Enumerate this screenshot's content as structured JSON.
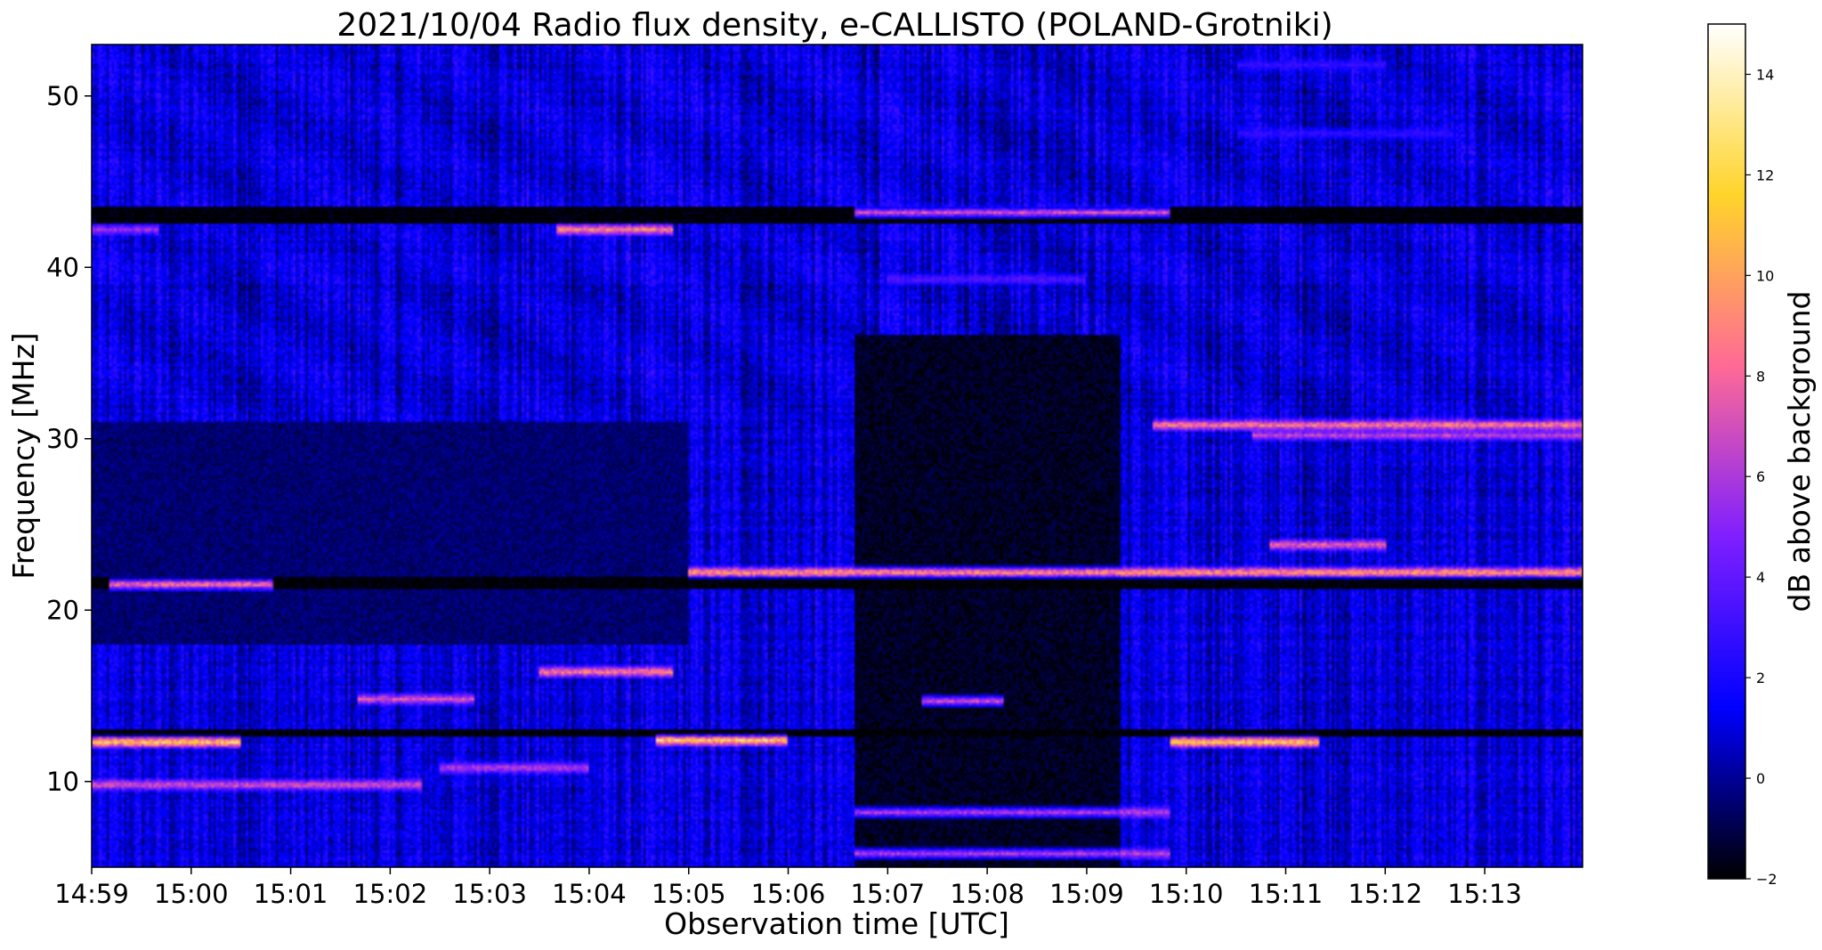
{
  "chart_data": {
    "type": "heatmap",
    "title": "2021/10/04  Radio flux density, e-CALLISTO (POLAND-Grotniki)",
    "xlabel": "Observation time [UTC]",
    "ylabel": "Frequency [MHz]",
    "x_ticks": [
      "14:59",
      "15:00",
      "15:01",
      "15:02",
      "15:03",
      "15:04",
      "15:05",
      "15:06",
      "15:07",
      "15:08",
      "15:09",
      "15:10",
      "15:11",
      "15:12",
      "15:13"
    ],
    "xlim": [
      "14:59:00",
      "15:13:59"
    ],
    "y_ticks": [
      10,
      20,
      30,
      40,
      50
    ],
    "ylim": [
      5,
      53
    ],
    "colorbar": {
      "label": "dB above background",
      "ticks": [
        -2,
        0,
        2,
        4,
        6,
        8,
        10,
        12,
        14
      ],
      "range": [
        -2,
        15
      ],
      "colormap": "gnuplot2",
      "stops": [
        "#000000",
        "#0000ff",
        "#7f1fff",
        "#ff6a95",
        "#ffd42a",
        "#ffffff"
      ]
    },
    "background_level_db": 1,
    "features": [
      {
        "kind": "dark_band",
        "freq_mhz": [
          42.6,
          43.6
        ],
        "time": [
          "14:59:00",
          "15:13:59"
        ],
        "db": -2
      },
      {
        "kind": "dark_band",
        "freq_mhz": [
          21.2,
          22.0
        ],
        "time": [
          "14:59:00",
          "15:13:59"
        ],
        "db": -2
      },
      {
        "kind": "dark_band",
        "freq_mhz": [
          12.6,
          13.0
        ],
        "time": [
          "14:59:00",
          "15:13:59"
        ],
        "db": -2
      },
      {
        "kind": "dark_region",
        "freq_mhz": [
          5,
          36
        ],
        "time": [
          "15:06:40",
          "15:09:20"
        ],
        "db": -1.5
      },
      {
        "kind": "dark_region",
        "freq_mhz": [
          18,
          31
        ],
        "time": [
          "14:59:00",
          "15:05:00"
        ],
        "db": -0.5
      },
      {
        "kind": "bright_line",
        "freq_mhz": 43.2,
        "time": [
          "15:06:40",
          "15:09:50"
        ],
        "db": 8
      },
      {
        "kind": "bright_line",
        "freq_mhz": 42.2,
        "time": [
          "15:03:40",
          "15:04:50"
        ],
        "db": 10
      },
      {
        "kind": "bright_line",
        "freq_mhz": 42.2,
        "time": [
          "14:59:00",
          "14:59:40"
        ],
        "db": 6
      },
      {
        "kind": "bright_line",
        "freq_mhz": 30.8,
        "time": [
          "15:09:40",
          "15:13:59"
        ],
        "db": 10
      },
      {
        "kind": "bright_line",
        "freq_mhz": 30.2,
        "time": [
          "15:10:40",
          "15:13:59"
        ],
        "db": 7
      },
      {
        "kind": "bright_line",
        "freq_mhz": 22.2,
        "time": [
          "15:05:00",
          "15:13:59"
        ],
        "db": 11
      },
      {
        "kind": "bright_line",
        "freq_mhz": 21.5,
        "time": [
          "14:59:10",
          "15:00:50"
        ],
        "db": 10
      },
      {
        "kind": "bright_line",
        "freq_mhz": 23.8,
        "time": [
          "15:10:50",
          "15:12:00"
        ],
        "db": 9
      },
      {
        "kind": "bright_line",
        "freq_mhz": 16.4,
        "time": [
          "15:03:30",
          "15:04:50"
        ],
        "db": 10
      },
      {
        "kind": "bright_line",
        "freq_mhz": 14.8,
        "time": [
          "15:01:40",
          "15:02:50"
        ],
        "db": 8
      },
      {
        "kind": "bright_line",
        "freq_mhz": 14.7,
        "time": [
          "15:07:20",
          "15:08:10"
        ],
        "db": 8
      },
      {
        "kind": "bright_line",
        "freq_mhz": 12.3,
        "time": [
          "14:59:00",
          "15:00:30"
        ],
        "db": 13
      },
      {
        "kind": "bright_line",
        "freq_mhz": 12.4,
        "time": [
          "15:04:40",
          "15:06:00"
        ],
        "db": 13
      },
      {
        "kind": "bright_line",
        "freq_mhz": 12.3,
        "time": [
          "15:09:50",
          "15:11:20"
        ],
        "db": 13
      },
      {
        "kind": "bright_line",
        "freq_mhz": 10.8,
        "time": [
          "15:02:30",
          "15:04:00"
        ],
        "db": 7
      },
      {
        "kind": "bright_line",
        "freq_mhz": 9.8,
        "time": [
          "14:59:00",
          "15:02:20"
        ],
        "db": 8
      },
      {
        "kind": "bright_line",
        "freq_mhz": 8.2,
        "time": [
          "15:06:40",
          "15:09:50"
        ],
        "db": 7
      },
      {
        "kind": "bright_line",
        "freq_mhz": 5.8,
        "time": [
          "15:06:40",
          "15:09:50"
        ],
        "db": 7
      },
      {
        "kind": "bright_line",
        "freq_mhz": 39.3,
        "time": [
          "15:07:00",
          "15:09:00"
        ],
        "db": 4
      },
      {
        "kind": "bright_line",
        "freq_mhz": 51.8,
        "time": [
          "15:10:30",
          "15:12:00"
        ],
        "db": 3
      },
      {
        "kind": "bright_line",
        "freq_mhz": 47.8,
        "time": [
          "15:10:30",
          "15:12:40"
        ],
        "db": 3
      }
    ]
  }
}
